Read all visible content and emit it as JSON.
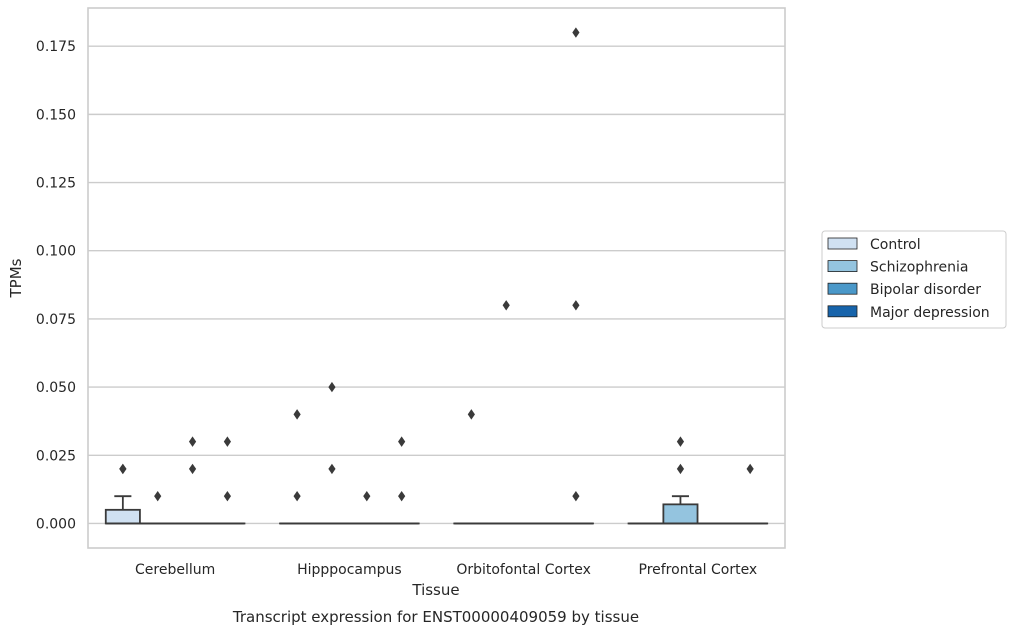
{
  "chart_data": {
    "type": "box",
    "title": "Transcript expression for ENST00000409059 by tissue",
    "xlabel": "Tissue",
    "ylabel": "TPMs",
    "ylim": [
      -0.009,
      0.189
    ],
    "yticks": [
      "0.000",
      "0.025",
      "0.050",
      "0.075",
      "0.100",
      "0.125",
      "0.150",
      "0.175"
    ],
    "ytick_values": [
      0,
      0.025,
      0.05,
      0.075,
      0.1,
      0.125,
      0.15,
      0.175
    ],
    "grid": true,
    "legend_position": "right",
    "categories": [
      "Cerebellum",
      "Hipppocampus",
      "Orbitofontal Cortex",
      "Prefrontal Cortex"
    ],
    "series": [
      {
        "name": "Control",
        "color": "#d0e1f2",
        "boxes": [
          {
            "q1": 0,
            "median": 0,
            "q3": 0.005,
            "whisker_low": 0,
            "whisker_high": 0.01,
            "outliers": [
              0.02,
              0.02
            ]
          },
          {
            "q1": 0,
            "median": 0,
            "q3": 0,
            "whisker_low": 0,
            "whisker_high": 0,
            "outliers": [
              0.04,
              0.01
            ]
          },
          {
            "q1": 0,
            "median": 0,
            "q3": 0,
            "whisker_low": 0,
            "whisker_high": 0,
            "outliers": [
              0.04
            ]
          },
          {
            "q1": 0,
            "median": 0,
            "q3": 0,
            "whisker_low": 0,
            "whisker_high": 0,
            "outliers": []
          }
        ]
      },
      {
        "name": "Schizophrenia",
        "color": "#94c4df",
        "boxes": [
          {
            "q1": 0,
            "median": 0,
            "q3": 0,
            "whisker_low": 0,
            "whisker_high": 0,
            "outliers": [
              0.01
            ]
          },
          {
            "q1": 0,
            "median": 0,
            "q3": 0,
            "whisker_low": 0,
            "whisker_high": 0,
            "outliers": [
              0.05,
              0.02
            ]
          },
          {
            "q1": 0,
            "median": 0,
            "q3": 0,
            "whisker_low": 0,
            "whisker_high": 0,
            "outliers": [
              0.08
            ]
          },
          {
            "q1": 0,
            "median": 0,
            "q3": 0.007,
            "whisker_low": 0,
            "whisker_high": 0.01,
            "outliers": [
              0.03,
              0.02
            ]
          }
        ]
      },
      {
        "name": "Bipolar disorder",
        "color": "#4a98c9",
        "boxes": [
          {
            "q1": 0,
            "median": 0,
            "q3": 0,
            "whisker_low": 0,
            "whisker_high": 0,
            "outliers": [
              0.03,
              0.02
            ]
          },
          {
            "q1": 0,
            "median": 0,
            "q3": 0,
            "whisker_low": 0,
            "whisker_high": 0,
            "outliers": [
              0.01
            ]
          },
          {
            "q1": 0,
            "median": 0,
            "q3": 0,
            "whisker_low": 0,
            "whisker_high": 0,
            "outliers": []
          },
          {
            "q1": 0,
            "median": 0,
            "q3": 0,
            "whisker_low": 0,
            "whisker_high": 0,
            "outliers": []
          }
        ]
      },
      {
        "name": "Major depression",
        "color": "#1764ab",
        "boxes": [
          {
            "q1": 0,
            "median": 0,
            "q3": 0,
            "whisker_low": 0,
            "whisker_high": 0,
            "outliers": [
              0.03,
              0.01
            ]
          },
          {
            "q1": 0,
            "median": 0,
            "q3": 0,
            "whisker_low": 0,
            "whisker_high": 0,
            "outliers": [
              0.03,
              0.01
            ]
          },
          {
            "q1": 0,
            "median": 0,
            "q3": 0,
            "whisker_low": 0,
            "whisker_high": 0,
            "outliers": [
              0.18,
              0.08,
              0.01
            ]
          },
          {
            "q1": 0,
            "median": 0,
            "q3": 0,
            "whisker_low": 0,
            "whisker_high": 0,
            "outliers": [
              0.02
            ]
          }
        ]
      }
    ]
  }
}
